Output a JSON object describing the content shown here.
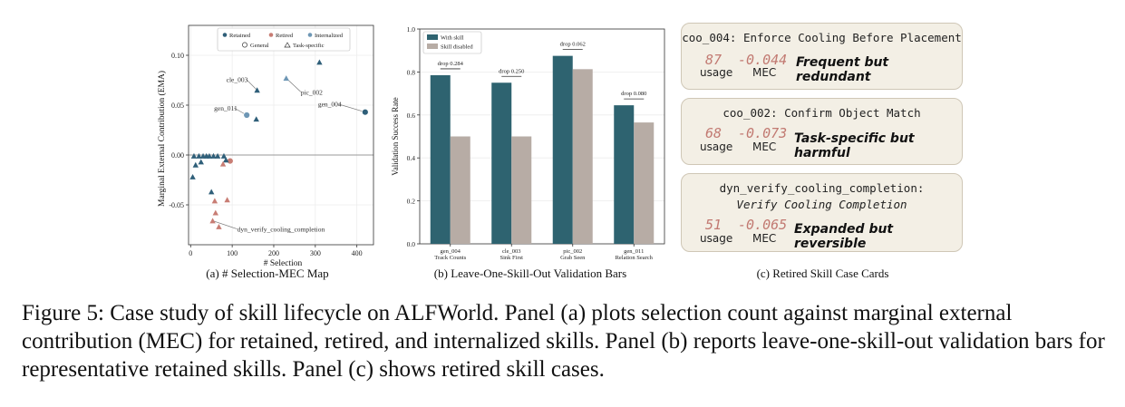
{
  "chart_data": [
    {
      "type": "scatter",
      "caption": "(a) # Selection-MEC Map",
      "xlabel": "# Selection",
      "ylabel": "Marginal External Contribution (EMA)",
      "xlim": [
        -5,
        440
      ],
      "ylim": [
        -0.09,
        0.13
      ],
      "xticks": [
        "0",
        "100",
        "200",
        "300",
        "400"
      ],
      "yticks": [
        "-0.05",
        "0.00",
        "0.05",
        "0.10"
      ],
      "legend": {
        "position": "top",
        "colors": [
          "Retained",
          "Retired",
          "Internalized"
        ],
        "shapes": [
          "General",
          "Task-specific"
        ]
      },
      "colors": {
        "Retained": "#2f5f79",
        "Retired": "#c87d74",
        "Internalized": "#6e97b5"
      },
      "points": [
        {
          "x": 420,
          "y": 0.043,
          "status": "Retained",
          "shape": "General"
        },
        {
          "x": 135,
          "y": 0.04,
          "status": "Internalized",
          "shape": "General"
        },
        {
          "x": 95,
          "y": -0.006,
          "status": "Retired",
          "shape": "General"
        },
        {
          "x": 310,
          "y": 0.093,
          "status": "Retained",
          "shape": "Task-specific"
        },
        {
          "x": 230,
          "y": 0.077,
          "status": "Internalized",
          "shape": "Task-specific"
        },
        {
          "x": 160,
          "y": 0.065,
          "status": "Retained",
          "shape": "Task-specific"
        },
        {
          "x": 158,
          "y": 0.036,
          "status": "Retained",
          "shape": "Task-specific"
        },
        {
          "x": 8,
          "y": -0.001,
          "status": "Retained",
          "shape": "Task-specific"
        },
        {
          "x": 20,
          "y": -0.001,
          "status": "Retained",
          "shape": "Task-specific"
        },
        {
          "x": 30,
          "y": -0.001,
          "status": "Retained",
          "shape": "Task-specific"
        },
        {
          "x": 38,
          "y": -0.001,
          "status": "Retained",
          "shape": "Task-specific"
        },
        {
          "x": 45,
          "y": -0.001,
          "status": "Retained",
          "shape": "Task-specific"
        },
        {
          "x": 55,
          "y": -0.001,
          "status": "Retained",
          "shape": "Task-specific"
        },
        {
          "x": 65,
          "y": -0.001,
          "status": "Retained",
          "shape": "Task-specific"
        },
        {
          "x": 80,
          "y": -0.001,
          "status": "Retained",
          "shape": "Task-specific"
        },
        {
          "x": 12,
          "y": -0.01,
          "status": "Retained",
          "shape": "Task-specific"
        },
        {
          "x": 5,
          "y": -0.022,
          "status": "Retained",
          "shape": "Task-specific"
        },
        {
          "x": 25,
          "y": -0.007,
          "status": "Retained",
          "shape": "Task-specific"
        },
        {
          "x": 85,
          "y": -0.005,
          "status": "Retained",
          "shape": "Task-specific"
        },
        {
          "x": 50,
          "y": -0.037,
          "status": "Retained",
          "shape": "Task-specific"
        },
        {
          "x": 78,
          "y": -0.009,
          "status": "Retired",
          "shape": "Task-specific"
        },
        {
          "x": 58,
          "y": -0.046,
          "status": "Retired",
          "shape": "Task-specific"
        },
        {
          "x": 88,
          "y": -0.045,
          "status": "Retired",
          "shape": "Task-specific"
        },
        {
          "x": 60,
          "y": -0.058,
          "status": "Retired",
          "shape": "Task-specific"
        },
        {
          "x": 53,
          "y": -0.066,
          "status": "Retired",
          "shape": "Task-specific"
        },
        {
          "x": 68,
          "y": -0.072,
          "status": "Retired",
          "shape": "Task-specific"
        }
      ],
      "annotations": [
        {
          "text": "cle_003",
          "x": 160,
          "y": 0.065
        },
        {
          "text": "pic_002",
          "x": 230,
          "y": 0.077
        },
        {
          "text": "gen_004",
          "x": 420,
          "y": 0.043
        },
        {
          "text": "gen_011",
          "x": 135,
          "y": 0.04
        },
        {
          "text": "dyn_verify_cooling_completion",
          "x": 53,
          "y": -0.066
        }
      ]
    },
    {
      "type": "bar",
      "caption": "(b) Leave-One-Skill-Out Validation Bars",
      "ylabel": "Validation Success Rate",
      "ylim": [
        0,
        1.0
      ],
      "yticks": [
        "0.0",
        "0.2",
        "0.4",
        "0.6",
        "0.8",
        "1.0"
      ],
      "legend_position": "top-left",
      "categories": [
        {
          "line1": "gen_004",
          "line2": "Track Counts"
        },
        {
          "line1": "cle_003",
          "line2": "Sink First"
        },
        {
          "line1": "pic_002",
          "line2": "Grab Seen"
        },
        {
          "line1": "gen_011",
          "line2": "Relation Search"
        }
      ],
      "series": [
        {
          "name": "With skill",
          "color": "#2e6370",
          "values": [
            0.785,
            0.75,
            0.875,
            0.645
          ]
        },
        {
          "name": "Skill disabled",
          "color": "#b7aca5",
          "values": [
            0.5,
            0.5,
            0.813,
            0.565
          ]
        }
      ],
      "drops": [
        "drop 0.284",
        "drop 0.250",
        "drop 0.062",
        "drop 0.080"
      ]
    }
  ],
  "cards_caption": "(c) Retired Skill Case Cards",
  "cards": [
    {
      "title": "coo_004: Enforce Cooling Before Placement",
      "title2": "",
      "usage": "87",
      "usage_label": "usage",
      "mec": "-0.044",
      "mec_label": "MEC",
      "verdict": "Frequent but redundant"
    },
    {
      "title": "coo_002: Confirm Object Match",
      "title2": "",
      "usage": "68",
      "usage_label": "usage",
      "mec": "-0.073",
      "mec_label": "MEC",
      "verdict": "Task-specific but harmful"
    },
    {
      "title": "dyn_verify_cooling_completion:",
      "title2": "Verify Cooling Completion",
      "usage": "51",
      "usage_label": "usage",
      "mec": "-0.065",
      "mec_label": "MEC",
      "verdict": "Expanded but reversible"
    }
  ],
  "figure_caption": "Figure 5: Case study of skill lifecycle on ALFWorld. Panel (a) plots selection count against marginal external contribution (MEC) for retained, retired, and internalized skills. Panel (b) reports leave-one-skill-out validation bars for representative retained skills. Panel (c) shows retired skill cases."
}
